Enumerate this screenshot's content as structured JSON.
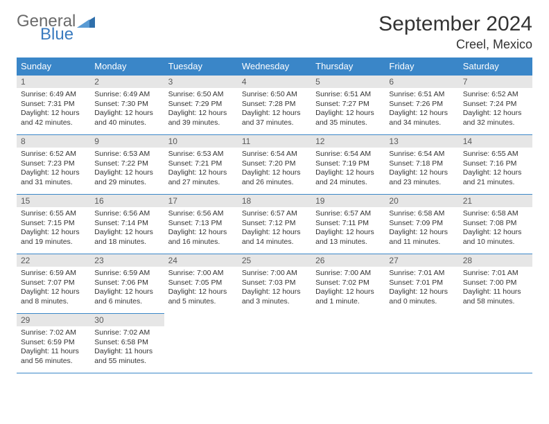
{
  "logo": {
    "word1": "General",
    "word2": "Blue",
    "accent_color": "#3a7bbf"
  },
  "title": "September 2024",
  "subtitle": "Creel, Mexico",
  "colors": {
    "header_bg": "#3a86c8",
    "header_fg": "#ffffff",
    "daynum_bg": "#e6e6e6",
    "daynum_fg": "#5a5a5a",
    "text": "#333333",
    "rule": "#3a86c8",
    "page_bg": "#ffffff"
  },
  "dow": [
    "Sunday",
    "Monday",
    "Tuesday",
    "Wednesday",
    "Thursday",
    "Friday",
    "Saturday"
  ],
  "weeks": [
    [
      {
        "n": "1",
        "sr": "Sunrise: 6:49 AM",
        "ss": "Sunset: 7:31 PM",
        "d1": "Daylight: 12 hours",
        "d2": "and 42 minutes."
      },
      {
        "n": "2",
        "sr": "Sunrise: 6:49 AM",
        "ss": "Sunset: 7:30 PM",
        "d1": "Daylight: 12 hours",
        "d2": "and 40 minutes."
      },
      {
        "n": "3",
        "sr": "Sunrise: 6:50 AM",
        "ss": "Sunset: 7:29 PM",
        "d1": "Daylight: 12 hours",
        "d2": "and 39 minutes."
      },
      {
        "n": "4",
        "sr": "Sunrise: 6:50 AM",
        "ss": "Sunset: 7:28 PM",
        "d1": "Daylight: 12 hours",
        "d2": "and 37 minutes."
      },
      {
        "n": "5",
        "sr": "Sunrise: 6:51 AM",
        "ss": "Sunset: 7:27 PM",
        "d1": "Daylight: 12 hours",
        "d2": "and 35 minutes."
      },
      {
        "n": "6",
        "sr": "Sunrise: 6:51 AM",
        "ss": "Sunset: 7:26 PM",
        "d1": "Daylight: 12 hours",
        "d2": "and 34 minutes."
      },
      {
        "n": "7",
        "sr": "Sunrise: 6:52 AM",
        "ss": "Sunset: 7:24 PM",
        "d1": "Daylight: 12 hours",
        "d2": "and 32 minutes."
      }
    ],
    [
      {
        "n": "8",
        "sr": "Sunrise: 6:52 AM",
        "ss": "Sunset: 7:23 PM",
        "d1": "Daylight: 12 hours",
        "d2": "and 31 minutes."
      },
      {
        "n": "9",
        "sr": "Sunrise: 6:53 AM",
        "ss": "Sunset: 7:22 PM",
        "d1": "Daylight: 12 hours",
        "d2": "and 29 minutes."
      },
      {
        "n": "10",
        "sr": "Sunrise: 6:53 AM",
        "ss": "Sunset: 7:21 PM",
        "d1": "Daylight: 12 hours",
        "d2": "and 27 minutes."
      },
      {
        "n": "11",
        "sr": "Sunrise: 6:54 AM",
        "ss": "Sunset: 7:20 PM",
        "d1": "Daylight: 12 hours",
        "d2": "and 26 minutes."
      },
      {
        "n": "12",
        "sr": "Sunrise: 6:54 AM",
        "ss": "Sunset: 7:19 PM",
        "d1": "Daylight: 12 hours",
        "d2": "and 24 minutes."
      },
      {
        "n": "13",
        "sr": "Sunrise: 6:54 AM",
        "ss": "Sunset: 7:18 PM",
        "d1": "Daylight: 12 hours",
        "d2": "and 23 minutes."
      },
      {
        "n": "14",
        "sr": "Sunrise: 6:55 AM",
        "ss": "Sunset: 7:16 PM",
        "d1": "Daylight: 12 hours",
        "d2": "and 21 minutes."
      }
    ],
    [
      {
        "n": "15",
        "sr": "Sunrise: 6:55 AM",
        "ss": "Sunset: 7:15 PM",
        "d1": "Daylight: 12 hours",
        "d2": "and 19 minutes."
      },
      {
        "n": "16",
        "sr": "Sunrise: 6:56 AM",
        "ss": "Sunset: 7:14 PM",
        "d1": "Daylight: 12 hours",
        "d2": "and 18 minutes."
      },
      {
        "n": "17",
        "sr": "Sunrise: 6:56 AM",
        "ss": "Sunset: 7:13 PM",
        "d1": "Daylight: 12 hours",
        "d2": "and 16 minutes."
      },
      {
        "n": "18",
        "sr": "Sunrise: 6:57 AM",
        "ss": "Sunset: 7:12 PM",
        "d1": "Daylight: 12 hours",
        "d2": "and 14 minutes."
      },
      {
        "n": "19",
        "sr": "Sunrise: 6:57 AM",
        "ss": "Sunset: 7:11 PM",
        "d1": "Daylight: 12 hours",
        "d2": "and 13 minutes."
      },
      {
        "n": "20",
        "sr": "Sunrise: 6:58 AM",
        "ss": "Sunset: 7:09 PM",
        "d1": "Daylight: 12 hours",
        "d2": "and 11 minutes."
      },
      {
        "n": "21",
        "sr": "Sunrise: 6:58 AM",
        "ss": "Sunset: 7:08 PM",
        "d1": "Daylight: 12 hours",
        "d2": "and 10 minutes."
      }
    ],
    [
      {
        "n": "22",
        "sr": "Sunrise: 6:59 AM",
        "ss": "Sunset: 7:07 PM",
        "d1": "Daylight: 12 hours",
        "d2": "and 8 minutes."
      },
      {
        "n": "23",
        "sr": "Sunrise: 6:59 AM",
        "ss": "Sunset: 7:06 PM",
        "d1": "Daylight: 12 hours",
        "d2": "and 6 minutes."
      },
      {
        "n": "24",
        "sr": "Sunrise: 7:00 AM",
        "ss": "Sunset: 7:05 PM",
        "d1": "Daylight: 12 hours",
        "d2": "and 5 minutes."
      },
      {
        "n": "25",
        "sr": "Sunrise: 7:00 AM",
        "ss": "Sunset: 7:03 PM",
        "d1": "Daylight: 12 hours",
        "d2": "and 3 minutes."
      },
      {
        "n": "26",
        "sr": "Sunrise: 7:00 AM",
        "ss": "Sunset: 7:02 PM",
        "d1": "Daylight: 12 hours",
        "d2": "and 1 minute."
      },
      {
        "n": "27",
        "sr": "Sunrise: 7:01 AM",
        "ss": "Sunset: 7:01 PM",
        "d1": "Daylight: 12 hours",
        "d2": "and 0 minutes."
      },
      {
        "n": "28",
        "sr": "Sunrise: 7:01 AM",
        "ss": "Sunset: 7:00 PM",
        "d1": "Daylight: 11 hours",
        "d2": "and 58 minutes."
      }
    ],
    [
      {
        "n": "29",
        "sr": "Sunrise: 7:02 AM",
        "ss": "Sunset: 6:59 PM",
        "d1": "Daylight: 11 hours",
        "d2": "and 56 minutes."
      },
      {
        "n": "30",
        "sr": "Sunrise: 7:02 AM",
        "ss": "Sunset: 6:58 PM",
        "d1": "Daylight: 11 hours",
        "d2": "and 55 minutes."
      },
      {
        "empty": true
      },
      {
        "empty": true
      },
      {
        "empty": true
      },
      {
        "empty": true
      },
      {
        "empty": true
      }
    ]
  ]
}
